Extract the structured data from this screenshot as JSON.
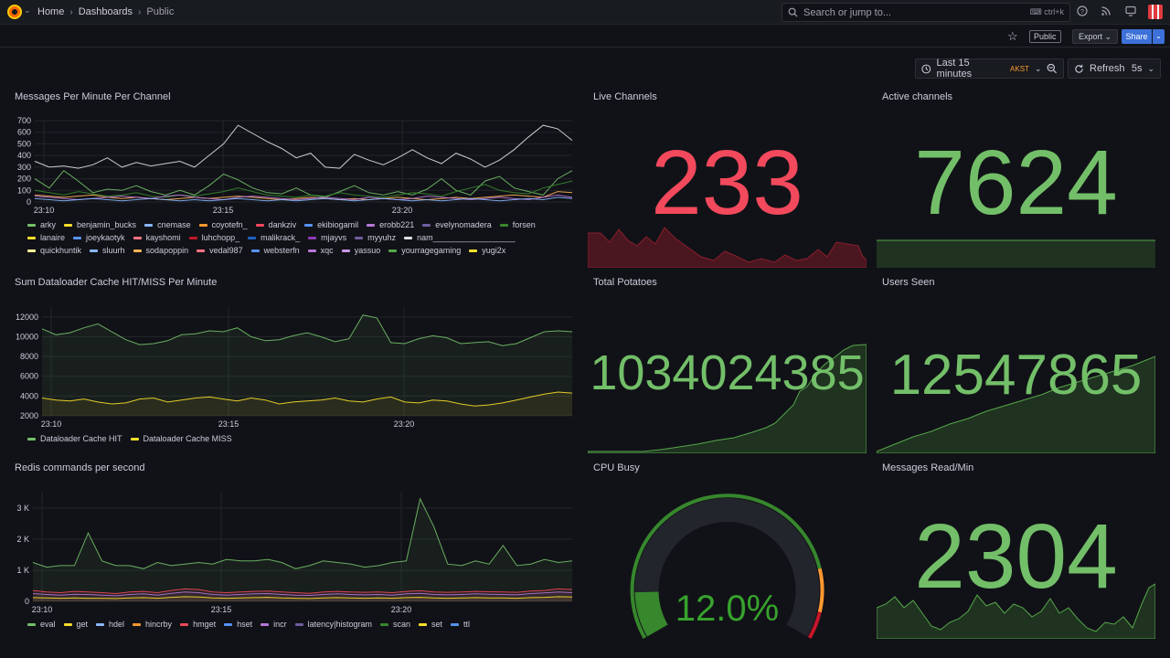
{
  "topbar": {
    "breadcrumbs": [
      "Home",
      "Dashboards",
      "Public"
    ],
    "search_placeholder": "Search or jump to...",
    "search_shortcut": "ctrl+k"
  },
  "toolbar": {
    "public_label": "Public",
    "export_label": "Export",
    "share_label": "Share"
  },
  "time": {
    "range_label": "Last 15 minutes",
    "timezone": "AKST",
    "refresh_label": "Refresh",
    "interval": "5s"
  },
  "colors": {
    "stat_green": "#73bf69",
    "stat_red": "#f2495c",
    "spark_green": "#56a64b",
    "spark_red": "#c4162a"
  },
  "panels": {
    "messages": {
      "title": "Messages Per Minute Per Channel",
      "y_ticks": [
        "700",
        "600",
        "500",
        "400",
        "300",
        "200",
        "100",
        "0"
      ],
      "x_ticks": [
        "23:10",
        "23:15",
        "23:20"
      ],
      "legend": [
        {
          "name": "arky",
          "color": "#73bf69"
        },
        {
          "name": "benjamin_bucks",
          "color": "#fade2a"
        },
        {
          "name": "cnemase",
          "color": "#8ab8ff"
        },
        {
          "name": "coyotefn_",
          "color": "#ff9830"
        },
        {
          "name": "dankziv",
          "color": "#f2495c"
        },
        {
          "name": "ekibiogamil",
          "color": "#5794f2"
        },
        {
          "name": "erobb221",
          "color": "#b877d9"
        },
        {
          "name": "evelynomadera",
          "color": "#705da0"
        },
        {
          "name": "forsen",
          "color": "#37872d"
        },
        {
          "name": "lanaire",
          "color": "#fade2a"
        },
        {
          "name": "joeykaotyk",
          "color": "#5794f2"
        },
        {
          "name": "kayshomi",
          "color": "#ff7383"
        },
        {
          "name": "luhchopp_",
          "color": "#c4162a"
        },
        {
          "name": "malikrack_",
          "color": "#1f60c4"
        },
        {
          "name": "mjayvs",
          "color": "#8f3bb8"
        },
        {
          "name": "myyuhz",
          "color": "#705da0"
        },
        {
          "name": "nam__________________",
          "color": "#e0e0e0"
        },
        {
          "name": "quickhuntik",
          "color": "#fff899"
        },
        {
          "name": "sluurh",
          "color": "#8ab8ff"
        },
        {
          "name": "sodapoppin",
          "color": "#ffb357"
        },
        {
          "name": "vedal987",
          "color": "#ff7383"
        },
        {
          "name": "websterfn",
          "color": "#5794f2"
        },
        {
          "name": "xqc",
          "color": "#b877d9"
        },
        {
          "name": "yassuo",
          "color": "#ca95e5"
        },
        {
          "name": "yourragegaming",
          "color": "#56a64b"
        },
        {
          "name": "yugi2x",
          "color": "#fade2a"
        }
      ]
    },
    "cache": {
      "title": "Sum Dataloader Cache HIT/MISS Per Minute",
      "y_ticks": [
        "12000",
        "10000",
        "8000",
        "6000",
        "4000",
        "2000"
      ],
      "x_ticks": [
        "23:10",
        "23:15",
        "23:20"
      ],
      "legend": [
        {
          "name": "Dataloader Cache HIT",
          "color": "#73bf69"
        },
        {
          "name": "Dataloader Cache MISS",
          "color": "#fade2a"
        }
      ]
    },
    "redis": {
      "title": "Redis commands per second",
      "y_ticks": [
        "3 K",
        "2 K",
        "1 K",
        "0"
      ],
      "x_ticks": [
        "23:10",
        "23:15",
        "23:20"
      ],
      "legend": [
        {
          "name": "eval",
          "color": "#73bf69"
        },
        {
          "name": "get",
          "color": "#fade2a"
        },
        {
          "name": "hdel",
          "color": "#8ab8ff"
        },
        {
          "name": "hincrby",
          "color": "#ff9830"
        },
        {
          "name": "hmget",
          "color": "#f2495c"
        },
        {
          "name": "hset",
          "color": "#5794f2"
        },
        {
          "name": "incr",
          "color": "#b877d9"
        },
        {
          "name": "latency|histogram",
          "color": "#705da0"
        },
        {
          "name": "scan",
          "color": "#37872d"
        },
        {
          "name": "set",
          "color": "#fade2a"
        },
        {
          "name": "ttl",
          "color": "#5794f2"
        }
      ]
    },
    "live_channels": {
      "title": "Live Channels",
      "value": "233"
    },
    "active_channels": {
      "title": "Active channels",
      "value": "7624"
    },
    "total_potatoes": {
      "title": "Total Potatoes",
      "value": "1034024385"
    },
    "users_seen": {
      "title": "Users Seen",
      "value": "12547865"
    },
    "cpu_busy": {
      "title": "CPU Busy",
      "value": "12.0%",
      "percent": 12
    },
    "messages_read": {
      "title": "Messages Read/Min",
      "value": "2304"
    }
  },
  "chart_data": [
    {
      "type": "line",
      "title": "Messages Per Minute Per Channel",
      "x_ticks": [
        "23:10",
        "23:15",
        "23:20"
      ],
      "ylim": [
        0,
        700
      ],
      "series": [
        {
          "name": "nam__________________",
          "values": [
            350,
            300,
            310,
            290,
            320,
            380,
            300,
            340,
            310,
            330,
            350,
            300,
            400,
            500,
            660,
            590,
            520,
            460,
            380,
            420,
            300,
            290,
            410,
            360,
            320,
            380,
            450,
            380,
            330,
            420,
            370,
            300,
            360,
            450,
            560,
            660,
            630,
            530
          ]
        },
        {
          "name": "arky",
          "values": [
            200,
            120,
            270,
            180,
            80,
            110,
            100,
            140,
            90,
            60,
            100,
            60,
            140,
            240,
            190,
            120,
            80,
            70,
            120,
            60,
            40,
            90,
            140,
            80,
            60,
            90,
            60,
            110,
            200,
            100,
            60,
            180,
            220,
            120,
            90,
            60,
            200,
            270
          ]
        },
        {
          "name": "forsen",
          "values": [
            100,
            80,
            60,
            90,
            70,
            50,
            60,
            80,
            50,
            40,
            60,
            50,
            70,
            90,
            120,
            90,
            60,
            50,
            40,
            60,
            50,
            80,
            60,
            50,
            40,
            60,
            80,
            70,
            50,
            90,
            120,
            150,
            100,
            80,
            70,
            120,
            150,
            180
          ]
        },
        {
          "name": "sodapoppin",
          "values": [
            60,
            50,
            40,
            50,
            60,
            40,
            30,
            40,
            30,
            20,
            30,
            40,
            30,
            40,
            50,
            40,
            30,
            20,
            30,
            40,
            30,
            20,
            30,
            20,
            30,
            40,
            30,
            20,
            30,
            40,
            30,
            40,
            50,
            60,
            50,
            40,
            90,
            80
          ]
        },
        {
          "name": "xqc",
          "values": [
            50,
            40,
            30,
            20,
            30,
            40,
            50,
            40,
            30,
            50,
            60,
            40,
            30,
            20,
            40,
            50,
            40,
            30,
            20,
            30,
            40,
            30,
            20,
            40,
            30,
            20,
            30,
            50,
            40,
            30,
            20,
            30,
            40,
            30,
            20,
            40,
            60,
            40
          ]
        },
        {
          "name": "cnemase",
          "values": [
            30,
            20,
            10,
            20,
            30,
            20,
            10,
            20,
            30,
            20,
            10,
            20,
            10,
            20,
            30,
            20,
            10,
            20,
            10,
            20,
            30,
            20,
            10,
            20,
            30,
            20,
            10,
            20,
            10,
            20,
            30,
            20,
            10,
            20,
            30,
            20,
            40,
            30
          ]
        }
      ]
    },
    {
      "type": "area",
      "title": "Sum Dataloader Cache HIT/MISS Per Minute",
      "x_ticks": [
        "23:10",
        "23:15",
        "23:20"
      ],
      "ylim": [
        2000,
        13000
      ],
      "series": [
        {
          "name": "Dataloader Cache HIT",
          "values": [
            10800,
            10200,
            10400,
            10900,
            11300,
            10500,
            9700,
            9200,
            9300,
            9600,
            10200,
            10300,
            10600,
            10500,
            10900,
            10000,
            9600,
            9700,
            10100,
            10400,
            10000,
            9500,
            9800,
            12200,
            11900,
            9400,
            9300,
            9800,
            10100,
            9900,
            9300,
            9400,
            9500,
            9100,
            9300,
            9900,
            10500,
            10600,
            10500
          ]
        },
        {
          "name": "Dataloader Cache MISS",
          "values": [
            3800,
            3600,
            3500,
            3700,
            3400,
            3200,
            3300,
            3700,
            3800,
            3400,
            3600,
            3800,
            3900,
            3700,
            3500,
            3800,
            3600,
            3200,
            3400,
            3500,
            3600,
            3800,
            3500,
            3400,
            3700,
            3900,
            3400,
            3300,
            3600,
            3500,
            3200,
            3000,
            3100,
            3300,
            3600,
            3900,
            4200,
            4400,
            4300
          ]
        }
      ]
    },
    {
      "type": "area",
      "title": "Redis commands per second",
      "x_ticks": [
        "23:10",
        "23:15",
        "23:20"
      ],
      "ylim": [
        0,
        3500
      ],
      "series": [
        {
          "name": "eval",
          "values": [
            1250,
            1100,
            1150,
            1150,
            2200,
            1300,
            1150,
            1150,
            1050,
            1250,
            1150,
            1200,
            1250,
            1200,
            1350,
            1300,
            1300,
            1350,
            1250,
            1050,
            1150,
            1300,
            1250,
            1200,
            1100,
            1150,
            1250,
            1300,
            3300,
            2400,
            1200,
            1150,
            1300,
            1200,
            1800,
            1150,
            1200,
            1350,
            1250,
            1300
          ]
        },
        {
          "name": "hmget",
          "values": [
            350,
            300,
            280,
            320,
            300,
            280,
            250,
            300,
            320,
            280,
            350,
            400,
            380,
            300,
            280,
            300,
            320,
            330,
            300,
            280,
            260,
            300,
            320,
            300,
            290,
            300,
            280,
            320,
            340,
            300,
            290,
            300,
            320,
            310,
            300,
            290,
            330,
            350,
            400,
            380
          ]
        },
        {
          "name": "incr",
          "values": [
            250,
            220,
            200,
            230,
            220,
            200,
            180,
            220,
            240,
            200,
            260,
            300,
            280,
            220,
            200,
            220,
            240,
            250,
            220,
            200,
            190,
            220,
            240,
            220,
            210,
            220,
            200,
            240,
            260,
            220,
            210,
            220,
            240,
            230,
            220,
            210,
            250,
            270,
            300,
            280
          ]
        },
        {
          "name": "get",
          "values": [
            120,
            110,
            100,
            110,
            100,
            100,
            90,
            110,
            120,
            100,
            130,
            150,
            140,
            110,
            100,
            110,
            120,
            130,
            110,
            100,
            90,
            110,
            120,
            110,
            100,
            110,
            100,
            120,
            130,
            110,
            100,
            110,
            120,
            110,
            110,
            100,
            120,
            130,
            150,
            140
          ]
        }
      ]
    }
  ]
}
